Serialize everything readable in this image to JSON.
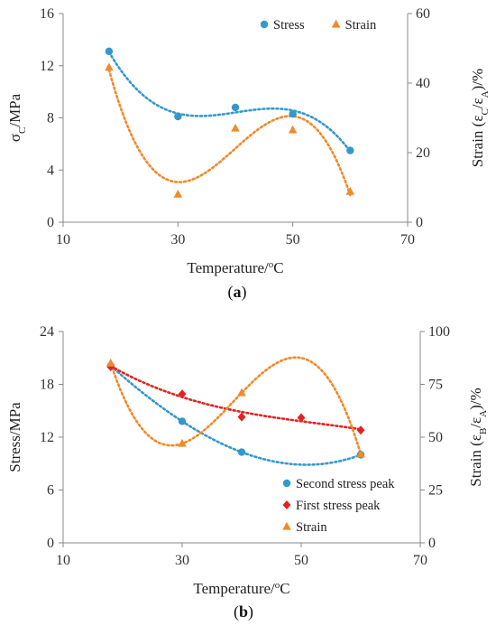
{
  "chart_data": [
    {
      "type": "scatter",
      "panel_label": "(a)",
      "xlabel": "Temperature/°C",
      "ylabel": "σC/MPa",
      "y2label": "Strain (εC/εA)/%",
      "xlim": [
        10,
        70
      ],
      "ylim": [
        0,
        16
      ],
      "y2lim": [
        0,
        60
      ],
      "xticks": [
        "10",
        "30",
        "50",
        "70"
      ],
      "yticks": [
        "0",
        "4",
        "8",
        "12",
        "16"
      ],
      "y2ticks": [
        "0",
        "20",
        "40",
        "60"
      ],
      "legend_position": "top-right",
      "grid": false,
      "series": [
        {
          "name": "Stress",
          "axis": "left",
          "marker": "circle",
          "color": "#3399cc",
          "x": [
            18,
            30,
            40,
            50,
            60
          ],
          "y": [
            13.1,
            8.1,
            8.8,
            8.3,
            5.5
          ],
          "trend": "polynomial"
        },
        {
          "name": "Strain",
          "axis": "right",
          "marker": "triangle",
          "color": "#f08a2c",
          "x": [
            18,
            30,
            40,
            50,
            60
          ],
          "y": [
            44.5,
            8.0,
            27.0,
            26.5,
            8.8
          ],
          "trend": "polynomial"
        }
      ]
    },
    {
      "type": "scatter",
      "panel_label": "(b)",
      "xlabel": "Temperature/°C",
      "ylabel": "Stress/MPa",
      "y2label": "Strain (εB/εA)/%",
      "xlim": [
        10,
        70
      ],
      "ylim": [
        0,
        24
      ],
      "y2lim": [
        0,
        100
      ],
      "xticks": [
        "10",
        "30",
        "50",
        "70"
      ],
      "yticks": [
        "0",
        "6",
        "12",
        "18",
        "24"
      ],
      "y2ticks": [
        "0",
        "25",
        "50",
        "75",
        "100"
      ],
      "legend_position": "bottom-right",
      "grid": false,
      "series": [
        {
          "name": "Second stress peak",
          "axis": "left",
          "marker": "circle",
          "color": "#3399cc",
          "x": [
            18,
            30,
            40,
            60
          ],
          "y": [
            20.1,
            13.8,
            10.3,
            10.0
          ],
          "trend": "polynomial"
        },
        {
          "name": "First stress peak",
          "axis": "left",
          "marker": "diamond",
          "color": "#e02424",
          "x": [
            18,
            30,
            40,
            50,
            60
          ],
          "y": [
            20.0,
            16.9,
            14.3,
            14.2,
            12.8
          ],
          "trend": "polynomial"
        },
        {
          "name": "Strain",
          "axis": "right",
          "marker": "triangle",
          "color": "#f08a2c",
          "x": [
            18,
            30,
            40,
            60
          ],
          "y": [
            85,
            47,
            71,
            42
          ],
          "trend": "polynomial"
        }
      ]
    }
  ]
}
